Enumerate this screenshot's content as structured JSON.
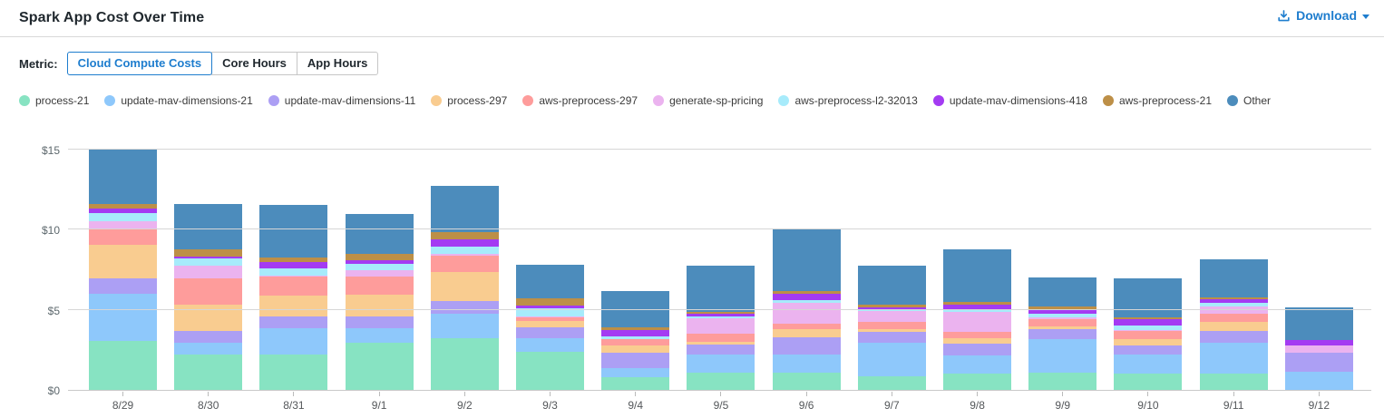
{
  "header": {
    "title": "Spark App Cost Over Time",
    "download_label": "Download"
  },
  "metric": {
    "label": "Metric:",
    "options": [
      {
        "label": "Cloud Compute Costs",
        "selected": true
      },
      {
        "label": "Core Hours",
        "selected": false
      },
      {
        "label": "App Hours",
        "selected": false
      }
    ]
  },
  "colors": {
    "accent_blue": "#1e7dce",
    "gridline": "#d6d6d6",
    "axis_text": "#5d686d"
  },
  "chart_data": {
    "type": "bar",
    "stacked": true,
    "title": "Spark App Cost Over Time",
    "xlabel": "",
    "ylabel": "Cloud Compute Costs ($)",
    "ylim": [
      0,
      15
    ],
    "grid": "horizontal",
    "legend_position": "top",
    "y_ticks": [
      {
        "label": "$0",
        "value": 0
      },
      {
        "label": "$5",
        "value": 5
      },
      {
        "label": "$10",
        "value": 10
      },
      {
        "label": "$15",
        "value": 15
      }
    ],
    "categories": [
      "8/29",
      "8/30",
      "8/31",
      "9/1",
      "9/2",
      "9/3",
      "9/4",
      "9/5",
      "9/6",
      "9/7",
      "9/8",
      "9/9",
      "9/10",
      "9/11",
      "9/12"
    ],
    "series": [
      {
        "name": "process-21",
        "color": "#87e3c2",
        "values": [
          3.05,
          2.2,
          2.2,
          2.95,
          3.2,
          2.4,
          0.8,
          1.1,
          1.1,
          0.85,
          1.0,
          1.1,
          1.0,
          1.0,
          0
        ]
      },
      {
        "name": "update-mav-dimensions-21",
        "color": "#8ec8fb",
        "values": [
          2.95,
          0.75,
          1.65,
          0.9,
          1.55,
          0.85,
          0.55,
          1.1,
          1.1,
          2.1,
          1.15,
          2.05,
          1.2,
          1.95,
          1.15
        ]
      },
      {
        "name": "update-mav-dimensions-11",
        "color": "#ac9ff4",
        "values": [
          0.95,
          0.75,
          0.75,
          0.75,
          0.8,
          0.65,
          1.0,
          0.65,
          1.1,
          0.7,
          0.75,
          0.65,
          0.55,
          0.75,
          1.15
        ]
      },
      {
        "name": "process-297",
        "color": "#f9cc90",
        "values": [
          2.1,
          1.65,
          1.3,
          1.35,
          1.8,
          0.4,
          0.45,
          0.15,
          0.5,
          0.15,
          0.3,
          0.15,
          0.45,
          0.55,
          0
        ]
      },
      {
        "name": "aws-preprocess-297",
        "color": "#fe9c9b",
        "values": [
          1.05,
          1.6,
          1.15,
          1.15,
          1.05,
          0.25,
          0.35,
          0.5,
          0.35,
          0.45,
          0.4,
          0.45,
          0.5,
          0.5,
          0
        ]
      },
      {
        "name": "generate-sp-pricing",
        "color": "#ebb3ef",
        "values": [
          0.45,
          0.8,
          0.1,
          0.4,
          0.1,
          0.05,
          0.05,
          0.95,
          1.3,
          0.7,
          1.25,
          0.15,
          0.05,
          0.45,
          0.45
        ]
      },
      {
        "name": "aws-preprocess-l2-32013",
        "color": "#a7ebfb",
        "values": [
          0.5,
          0.45,
          0.45,
          0.35,
          0.45,
          0.5,
          0.15,
          0.15,
          0.15,
          0.1,
          0.15,
          0.2,
          0.25,
          0.25,
          0
        ]
      },
      {
        "name": "update-mav-dimensions-418",
        "color": "#a43bf2",
        "values": [
          0.25,
          0.15,
          0.4,
          0.25,
          0.45,
          0.15,
          0.4,
          0.15,
          0.4,
          0.1,
          0.35,
          0.25,
          0.4,
          0.2,
          0.35
        ]
      },
      {
        "name": "aws-preprocess-21",
        "color": "#bd8f47",
        "values": [
          0.3,
          0.45,
          0.25,
          0.4,
          0.45,
          0.45,
          0.15,
          0.15,
          0.15,
          0.15,
          0.15,
          0.2,
          0.15,
          0.15,
          0
        ]
      },
      {
        "name": "Other",
        "color": "#4c8cbc",
        "values": [
          3.45,
          2.8,
          3.3,
          2.5,
          2.9,
          2.1,
          2.3,
          2.85,
          3.85,
          2.45,
          3.3,
          1.85,
          2.4,
          2.35,
          2.05
        ]
      }
    ]
  }
}
